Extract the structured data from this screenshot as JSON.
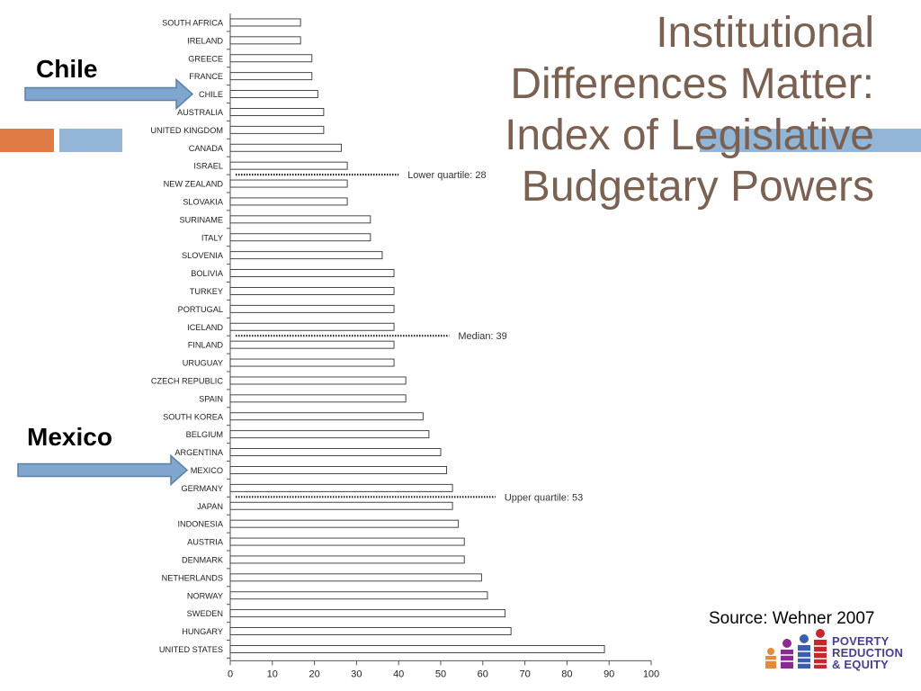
{
  "title": "Institutional Differences Matter: Index of Legislative Budgetary Powers",
  "annotations": {
    "chile_label": "Chile",
    "mexico_label": "Mexico",
    "arrow_color": "#7fa6cf"
  },
  "source": "Source: Wehner 2007",
  "logo": {
    "line1": "POVERTY",
    "line2": "REDUCTION",
    "line3": "& EQUITY",
    "text_color": "#4a3d8f"
  },
  "colors": {
    "title": "#7a6152",
    "accent_orange": "#e07b45",
    "accent_blue": "#93b6d7",
    "bar_fill": "#ffffff",
    "bar_stroke": "#333333"
  },
  "chart_data": {
    "type": "bar",
    "orientation": "horizontal",
    "categories": [
      "SOUTH AFRICA",
      "IRELAND",
      "GREECE",
      "FRANCE",
      "CHILE",
      "AUSTRALIA",
      "UNITED KINGDOM",
      "CANADA",
      "ISRAEL",
      "NEW ZEALAND",
      "SLOVAKIA",
      "SURINAME",
      "ITALY",
      "SLOVENIA",
      "BOLIVIA",
      "TURKEY",
      "PORTUGAL",
      "ICELAND",
      "FINLAND",
      "URUGUAY",
      "CZECH REPUBLIC",
      "SPAIN",
      "SOUTH KOREA",
      "BELGIUM",
      "ARGENTINA",
      "MEXICO",
      "GERMANY",
      "JAPAN",
      "INDONESIA",
      "AUSTRIA",
      "DENMARK",
      "NETHERLANDS",
      "NORWAY",
      "SWEDEN",
      "HUNGARY",
      "UNITED STATES"
    ],
    "values": [
      16.7,
      16.7,
      19.4,
      19.4,
      20.8,
      22.2,
      22.2,
      26.4,
      27.8,
      27.8,
      27.8,
      33.3,
      33.3,
      36.1,
      38.9,
      38.9,
      38.9,
      38.9,
      38.9,
      38.9,
      41.7,
      41.7,
      45.8,
      47.2,
      50.0,
      51.4,
      52.8,
      52.8,
      54.2,
      55.6,
      55.6,
      59.7,
      61.1,
      65.3,
      66.7,
      88.9
    ],
    "xlim": [
      0,
      100
    ],
    "xticks": [
      0,
      10,
      20,
      30,
      40,
      50,
      60,
      70,
      80,
      90,
      100
    ],
    "reference_lines": [
      {
        "label": "Lower quartile: 28",
        "after_category": "ISRAEL",
        "line_end": 40
      },
      {
        "label": "Median: 39",
        "after_category": "ICELAND",
        "line_end": 52
      },
      {
        "label": "Upper quartile: 53",
        "after_category": "GERMANY",
        "line_end": 63
      }
    ],
    "highlighted": [
      "CHILE",
      "MEXICO"
    ],
    "grid": false
  }
}
